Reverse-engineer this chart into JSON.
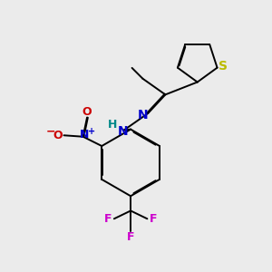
{
  "background_color": "#ebebeb",
  "figsize": [
    3.0,
    3.0
  ],
  "dpi": 100,
  "bond_color": "black",
  "bond_lw": 1.4,
  "dbo": 0.035,
  "atoms": {
    "S": {
      "color": "#bbbb00"
    },
    "N": {
      "color": "#0000cc"
    },
    "O": {
      "color": "#cc0000"
    },
    "F": {
      "color": "#cc00cc"
    },
    "H": {
      "color": "#008888"
    }
  },
  "xlim": [
    0,
    10
  ],
  "ylim": [
    0,
    10
  ]
}
